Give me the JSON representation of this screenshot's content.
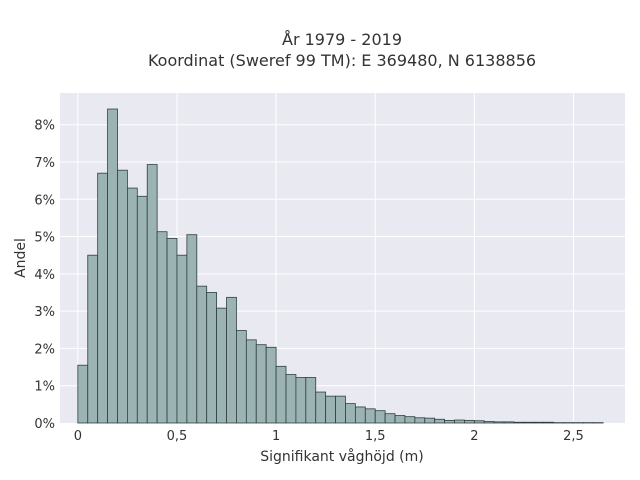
{
  "chart_data": {
    "type": "bar",
    "title_line1": "År 1979 - 2019",
    "title_line2": "Koordinat (Sweref 99 TM): E 369480, N 6138856",
    "xlabel": "Signifikant våghöjd (m)",
    "ylabel": "Andel",
    "xlim": [
      -0.09,
      2.76
    ],
    "ylim": [
      0,
      8.85
    ],
    "x_ticks": [
      {
        "value": 0,
        "label": "0"
      },
      {
        "value": 0.5,
        "label": "0,5"
      },
      {
        "value": 1,
        "label": "1"
      },
      {
        "value": 1.5,
        "label": "1,5"
      },
      {
        "value": 2,
        "label": "2"
      },
      {
        "value": 2.5,
        "label": "2,5"
      }
    ],
    "y_ticks": [
      {
        "value": 0,
        "label": "0%"
      },
      {
        "value": 1,
        "label": "1%"
      },
      {
        "value": 2,
        "label": "2%"
      },
      {
        "value": 3,
        "label": "3%"
      },
      {
        "value": 4,
        "label": "4%"
      },
      {
        "value": 5,
        "label": "5%"
      },
      {
        "value": 6,
        "label": "6%"
      },
      {
        "value": 7,
        "label": "7%"
      },
      {
        "value": 8,
        "label": "8%"
      }
    ],
    "grid": true,
    "bin_start": 0,
    "bin_width": 0.05,
    "values": [
      1.55,
      4.5,
      6.7,
      8.42,
      6.78,
      6.3,
      6.08,
      6.93,
      5.13,
      4.95,
      4.5,
      5.05,
      3.67,
      3.5,
      3.08,
      3.37,
      2.48,
      2.23,
      2.1,
      2.03,
      1.52,
      1.3,
      1.22,
      1.22,
      0.83,
      0.72,
      0.72,
      0.52,
      0.43,
      0.38,
      0.33,
      0.25,
      0.2,
      0.17,
      0.14,
      0.13,
      0.1,
      0.07,
      0.08,
      0.07,
      0.06,
      0.04,
      0.03,
      0.03,
      0.02,
      0.02,
      0.02,
      0.02,
      0.01,
      0.01,
      0.01,
      0.01,
      0.01
    ],
    "colors": {
      "bar_fill": "#9bb3b3",
      "bar_stroke": "#2f3f3f",
      "plot_bg": "#e9e9f1",
      "grid": "#ffffff"
    }
  }
}
